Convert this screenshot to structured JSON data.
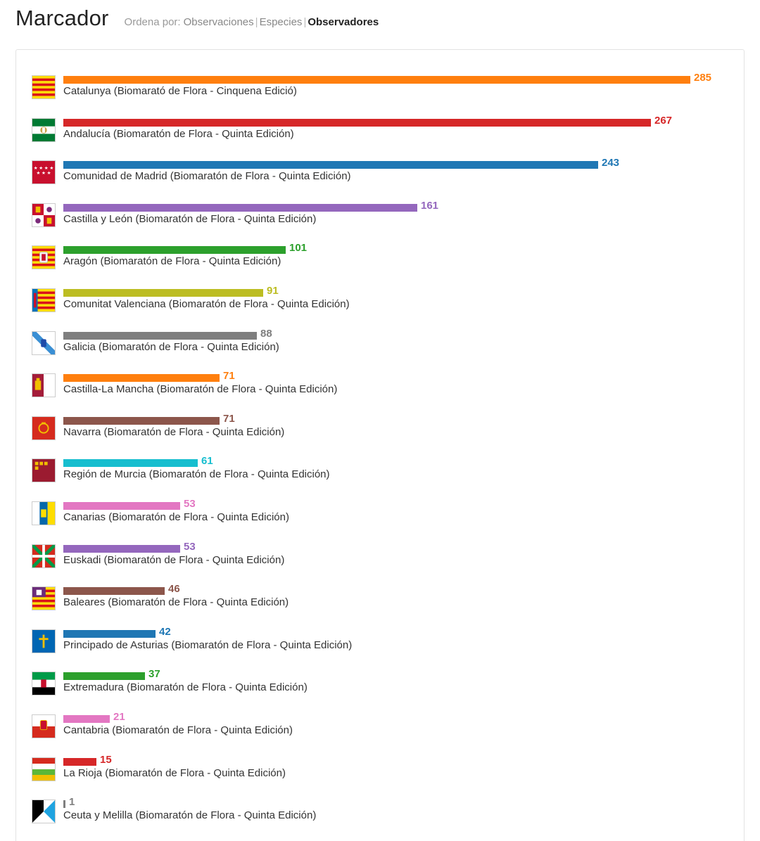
{
  "header": {
    "title": "Marcador",
    "sort_label": "Ordena por:",
    "sort_options": [
      "Observaciones",
      "Especies",
      "Observadores"
    ],
    "active_sort": "Observadores"
  },
  "chart_data": {
    "type": "bar",
    "orientation": "horizontal",
    "categories": [
      "Catalunya (Biomarató de Flora - Cinquena Edició)",
      "Andalucía (Biomaratón de Flora - Quinta Edición)",
      "Comunidad de Madrid (Biomaratón de Flora - Quinta Edición)",
      "Castilla y León (Biomaratón de Flora - Quinta Edición)",
      "Aragón (Biomaratón de Flora - Quinta Edición)",
      "Comunitat Valenciana (Biomaratón de Flora - Quinta Edición)",
      "Galicia (Biomaratón de Flora - Quinta Edición)",
      "Castilla-La Mancha (Biomaratón de Flora - Quinta Edición)",
      "Navarra (Biomaratón de Flora - Quinta Edición)",
      "Región de Murcia (Biomaratón de Flora - Quinta Edición)",
      "Canarias (Biomaratón de Flora - Quinta Edición)",
      "Euskadi (Biomaratón de Flora - Quinta Edición)",
      "Baleares (Biomaratón de Flora - Quinta Edición)",
      "Principado de Asturias (Biomaratón de Flora - Quinta Edición)",
      "Extremadura (Biomaratón de Flora - Quinta Edición)",
      "Cantabria (Biomaratón de Flora - Quinta Edición)",
      "La Rioja (Biomaratón de Flora - Quinta Edición)",
      "Ceuta y Melilla (Biomaratón de Flora - Quinta Edición)"
    ],
    "values": [
      285,
      267,
      243,
      161,
      101,
      91,
      88,
      71,
      71,
      61,
      53,
      53,
      46,
      42,
      37,
      21,
      15,
      1
    ],
    "colors": [
      "#ff7f0e",
      "#d62728",
      "#1f77b4",
      "#9467bd",
      "#2ca02c",
      "#bcbd22",
      "#7f7f7f",
      "#ff7f0e",
      "#8c564b",
      "#17becf",
      "#e377c2",
      "#9467bd",
      "#8c564b",
      "#1f77b4",
      "#2ca02c",
      "#e377c2",
      "#d62728",
      "#7f7f7f"
    ],
    "flags": [
      "catalunya-flag-icon",
      "andalucia-flag-icon",
      "madrid-flag-icon",
      "castilla-leon-flag-icon",
      "aragon-flag-icon",
      "valencia-flag-icon",
      "galicia-flag-icon",
      "castilla-la-mancha-flag-icon",
      "navarra-flag-icon",
      "murcia-flag-icon",
      "canarias-flag-icon",
      "euskadi-flag-icon",
      "baleares-flag-icon",
      "asturias-flag-icon",
      "extremadura-flag-icon",
      "cantabria-flag-icon",
      "la-rioja-flag-icon",
      "ceuta-melilla-flag-icon"
    ],
    "xlim": [
      0,
      285
    ],
    "grid": false
  }
}
